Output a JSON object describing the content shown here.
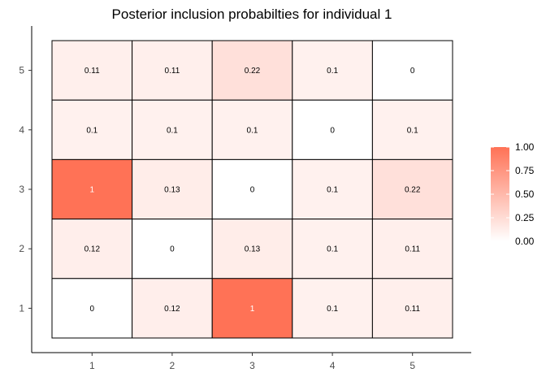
{
  "chart_data": {
    "type": "heatmap",
    "title": "Posterior inclusion probabilties for individual 1",
    "xlabel": "",
    "ylabel": "",
    "x_categories": [
      "1",
      "2",
      "3",
      "4",
      "5"
    ],
    "y_categories": [
      "1",
      "2",
      "3",
      "4",
      "5"
    ],
    "cells": [
      {
        "x": "1",
        "y": "5",
        "value": 0.11,
        "label": "0.11"
      },
      {
        "x": "2",
        "y": "5",
        "value": 0.11,
        "label": "0.11"
      },
      {
        "x": "3",
        "y": "5",
        "value": 0.22,
        "label": "0.22"
      },
      {
        "x": "4",
        "y": "5",
        "value": 0.1,
        "label": "0.1"
      },
      {
        "x": "5",
        "y": "5",
        "value": 0,
        "label": "0"
      },
      {
        "x": "1",
        "y": "4",
        "value": 0.1,
        "label": "0.1"
      },
      {
        "x": "2",
        "y": "4",
        "value": 0.1,
        "label": "0.1"
      },
      {
        "x": "3",
        "y": "4",
        "value": 0.1,
        "label": "0.1"
      },
      {
        "x": "4",
        "y": "4",
        "value": 0,
        "label": "0"
      },
      {
        "x": "5",
        "y": "4",
        "value": 0.1,
        "label": "0.1"
      },
      {
        "x": "1",
        "y": "3",
        "value": 1,
        "label": "1"
      },
      {
        "x": "2",
        "y": "3",
        "value": 0.13,
        "label": "0.13"
      },
      {
        "x": "3",
        "y": "3",
        "value": 0,
        "label": "0"
      },
      {
        "x": "4",
        "y": "3",
        "value": 0.1,
        "label": "0.1"
      },
      {
        "x": "5",
        "y": "3",
        "value": 0.22,
        "label": "0.22"
      },
      {
        "x": "1",
        "y": "2",
        "value": 0.12,
        "label": "0.12"
      },
      {
        "x": "2",
        "y": "2",
        "value": 0,
        "label": "0"
      },
      {
        "x": "3",
        "y": "2",
        "value": 0.13,
        "label": "0.13"
      },
      {
        "x": "4",
        "y": "2",
        "value": 0.1,
        "label": "0.1"
      },
      {
        "x": "5",
        "y": "2",
        "value": 0.11,
        "label": "0.11"
      },
      {
        "x": "1",
        "y": "1",
        "value": 0,
        "label": "0"
      },
      {
        "x": "2",
        "y": "1",
        "value": 0.12,
        "label": "0.12"
      },
      {
        "x": "3",
        "y": "1",
        "value": 1,
        "label": "1"
      },
      {
        "x": "4",
        "y": "1",
        "value": 0.1,
        "label": "0.1"
      },
      {
        "x": "5",
        "y": "1",
        "value": 0.11,
        "label": "0.11"
      }
    ],
    "color_scale": {
      "low": "#ffffff",
      "high": "#ff7256",
      "min": 0,
      "max": 1
    },
    "legend": {
      "placement": "right",
      "ticks": [
        1.0,
        0.75,
        0.5,
        0.25,
        0.0
      ],
      "tick_labels": [
        "1.00",
        "0.75",
        "0.50",
        "0.25",
        "0.00"
      ]
    },
    "grid": false
  }
}
